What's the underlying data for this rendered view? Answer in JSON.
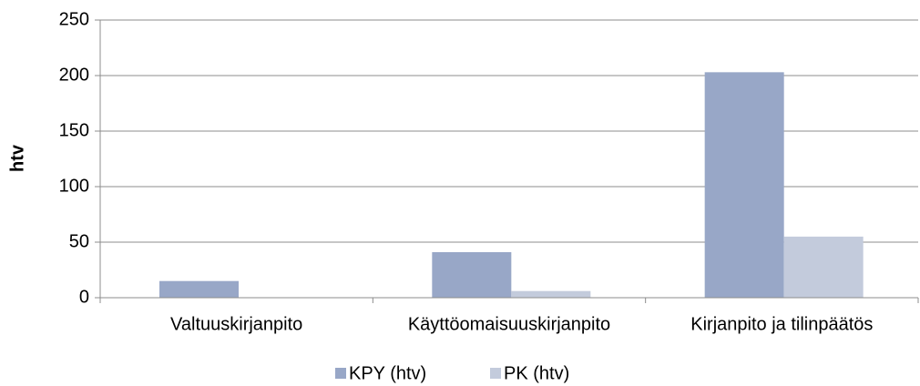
{
  "chart_data": {
    "type": "bar",
    "categories": [
      "Valtuuskirjanpito",
      "Käyttöomaisuuskirjanpito",
      "Kirjanpito ja tilinpäätös"
    ],
    "series": [
      {
        "name": "KPY (htv)",
        "color": "#98a7c7",
        "values": [
          15,
          41,
          203
        ]
      },
      {
        "name": "PK (htv)",
        "color": "#c3cbdc",
        "values": [
          0,
          6,
          55
        ]
      }
    ],
    "ylabel": "htv",
    "ylim": [
      0,
      250
    ],
    "yticks": [
      0,
      50,
      100,
      150,
      200,
      250
    ],
    "grid": true,
    "legend": "bottom"
  }
}
